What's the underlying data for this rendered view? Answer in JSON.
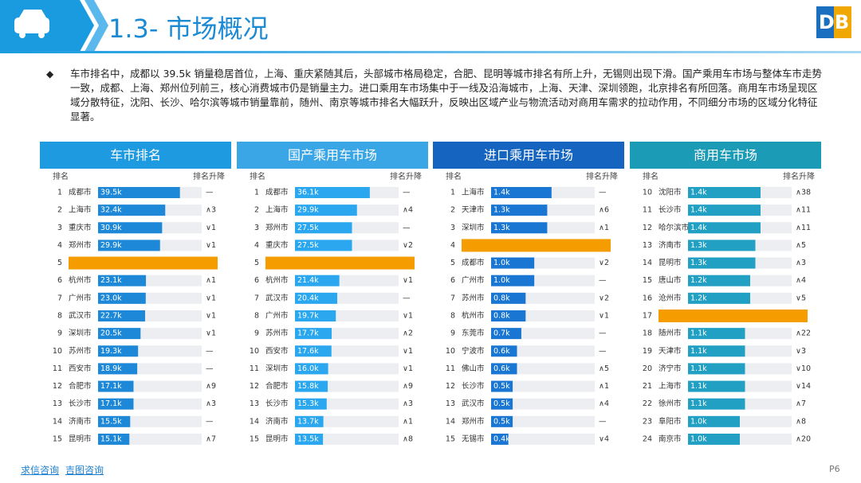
{
  "header": {
    "title": "1.3- 市场概况",
    "logo": "DB"
  },
  "summary": "车市排名中，成都以 39.5k 销量稳居首位，上海、重庆紧随其后，头部城市格局稳定，合肥、昆明等城市排名有所上升，无锡则出现下滑。国产乘用车市场与整体车市走势一致，成都、上海、郑州位列前三，核心消费城市仍是销量主力。进口乘用车市场集中于一线及沿海城市，上海、天津、深圳领跑，北京排名有所回落。商用车市场呈现区域分散特征，沈阳、长沙、哈尔滨等城市销量靠前，随州、南京等城市排名大幅跃升，反映出区域产业与物流活动对商用车需求的拉动作用，不同细分市场的区域分化特征显著。",
  "columns": [
    "排名",
    "排名升降"
  ],
  "panels": [
    {
      "title": "车市排名",
      "header_color": "#1e9be0",
      "bar_color": "#1e88d8",
      "xlim": [
        0,
        50
      ],
      "rows": [
        {
          "rank": 1,
          "city": "成都市",
          "value": 39.5,
          "value_label": "39.5k",
          "change": "—"
        },
        {
          "rank": 2,
          "city": "上海市",
          "value": 32.4,
          "value_label": "32.4k",
          "change": "∧3"
        },
        {
          "rank": 3,
          "city": "重庆市",
          "value": 30.9,
          "value_label": "30.9k",
          "change": "∨1"
        },
        {
          "rank": 4,
          "city": "郑州市",
          "value": 29.9,
          "value_label": "29.9k",
          "change": "∨1"
        },
        {
          "rank": 5,
          "color": "#f59c00"
        },
        {
          "rank": 6,
          "city": "杭州市",
          "value": 23.1,
          "value_label": "23.1k",
          "change": "∧1"
        },
        {
          "rank": 7,
          "city": "广州市",
          "value": 23.0,
          "value_label": "23.0k",
          "change": "∨1"
        },
        {
          "rank": 8,
          "city": "武汉市",
          "value": 22.7,
          "value_label": "22.7k",
          "change": "∨1"
        },
        {
          "rank": 9,
          "city": "深圳市",
          "value": 20.5,
          "value_label": "20.5k",
          "change": "∨1"
        },
        {
          "rank": 10,
          "city": "苏州市",
          "value": 19.3,
          "value_label": "19.3k",
          "change": "—"
        },
        {
          "rank": 11,
          "city": "西安市",
          "value": 18.9,
          "value_label": "18.9k",
          "change": "—"
        },
        {
          "rank": 12,
          "city": "合肥市",
          "value": 17.1,
          "value_label": "17.1k",
          "change": "∧9"
        },
        {
          "rank": 13,
          "city": "长沙市",
          "value": 17.1,
          "value_label": "17.1k",
          "change": "∧3"
        },
        {
          "rank": 14,
          "city": "济南市",
          "value": 15.5,
          "value_label": "15.5k",
          "change": "—"
        },
        {
          "rank": 15,
          "city": "昆明市",
          "value": 15.1,
          "value_label": "15.1k",
          "change": "∧7"
        }
      ]
    },
    {
      "title": "国产乘用车市场",
      "header_color": "#3aa6e6",
      "bar_color": "#2aa7ef",
      "xlim": [
        0,
        50
      ],
      "rows": [
        {
          "rank": 1,
          "city": "成都市",
          "value": 36.1,
          "value_label": "36.1k",
          "change": "—"
        },
        {
          "rank": 2,
          "city": "上海市",
          "value": 29.9,
          "value_label": "29.9k",
          "change": "∧4"
        },
        {
          "rank": 3,
          "city": "郑州市",
          "value": 27.5,
          "value_label": "27.5k",
          "change": "—"
        },
        {
          "rank": 4,
          "city": "重庆市",
          "value": 27.5,
          "value_label": "27.5k",
          "change": "∨2"
        },
        {
          "rank": 5,
          "color": "#f59c00"
        },
        {
          "rank": 6,
          "city": "杭州市",
          "value": 21.4,
          "value_label": "21.4k",
          "change": "∨1"
        },
        {
          "rank": 7,
          "city": "武汉市",
          "value": 20.4,
          "value_label": "20.4k",
          "change": "—"
        },
        {
          "rank": 8,
          "city": "广州市",
          "value": 19.7,
          "value_label": "19.7k",
          "change": "∨1"
        },
        {
          "rank": 9,
          "city": "苏州市",
          "value": 17.7,
          "value_label": "17.7k",
          "change": "∧2"
        },
        {
          "rank": 10,
          "city": "西安市",
          "value": 17.6,
          "value_label": "17.6k",
          "change": "∨1"
        },
        {
          "rank": 11,
          "city": "深圳市",
          "value": 16.0,
          "value_label": "16.0k",
          "change": "∨1"
        },
        {
          "rank": 12,
          "city": "合肥市",
          "value": 15.8,
          "value_label": "15.8k",
          "change": "∧9"
        },
        {
          "rank": 13,
          "city": "长沙市",
          "value": 15.3,
          "value_label": "15.3k",
          "change": "∧3"
        },
        {
          "rank": 14,
          "city": "济南市",
          "value": 13.7,
          "value_label": "13.7k",
          "change": "∧1"
        },
        {
          "rank": 15,
          "city": "昆明市",
          "value": 13.5,
          "value_label": "13.5k",
          "change": "∧8"
        }
      ]
    },
    {
      "title": "进口乘用车市场",
      "header_color": "#1565c0",
      "bar_color": "#1976d2",
      "xlim": [
        0,
        2.4
      ],
      "rows": [
        {
          "rank": 1,
          "city": "上海市",
          "value": 1.4,
          "value_label": "1.4k",
          "change": "—"
        },
        {
          "rank": 2,
          "city": "天津市",
          "value": 1.3,
          "value_label": "1.3k",
          "change": "∧6"
        },
        {
          "rank": 3,
          "city": "深圳市",
          "value": 1.3,
          "value_label": "1.3k",
          "change": "∧1"
        },
        {
          "rank": 4,
          "color": "#f59c00"
        },
        {
          "rank": 5,
          "city": "成都市",
          "value": 1.0,
          "value_label": "1.0k",
          "change": "∨2"
        },
        {
          "rank": 6,
          "city": "广州市",
          "value": 1.0,
          "value_label": "1.0k",
          "change": "—"
        },
        {
          "rank": 7,
          "city": "苏州市",
          "value": 0.8,
          "value_label": "0.8k",
          "change": "∨2"
        },
        {
          "rank": 8,
          "city": "杭州市",
          "value": 0.8,
          "value_label": "0.8k",
          "change": "∨1"
        },
        {
          "rank": 9,
          "city": "东莞市",
          "value": 0.7,
          "value_label": "0.7k",
          "change": "—"
        },
        {
          "rank": 10,
          "city": "宁波市",
          "value": 0.6,
          "value_label": "0.6k",
          "change": "—"
        },
        {
          "rank": 11,
          "city": "佛山市",
          "value": 0.6,
          "value_label": "0.6k",
          "change": "∧5"
        },
        {
          "rank": 12,
          "city": "长沙市",
          "value": 0.5,
          "value_label": "0.5k",
          "change": "∧1"
        },
        {
          "rank": 13,
          "city": "武汉市",
          "value": 0.5,
          "value_label": "0.5k",
          "change": "∧4"
        },
        {
          "rank": 14,
          "city": "郑州市",
          "value": 0.5,
          "value_label": "0.5k",
          "change": "—"
        },
        {
          "rank": 15,
          "city": "无锡市",
          "value": 0.4,
          "value_label": "0.4k",
          "change": "∨4"
        }
      ]
    },
    {
      "title": "商用车市场",
      "header_color": "#1b9bb5",
      "bar_color": "#21a0c4",
      "xlim": [
        0,
        2
      ],
      "rows": [
        {
          "rank": 10,
          "city": "沈阳市",
          "value": 1.4,
          "value_label": "1.4k",
          "change": "∧38"
        },
        {
          "rank": 11,
          "city": "长沙市",
          "value": 1.4,
          "value_label": "1.4k",
          "change": "∧11"
        },
        {
          "rank": 12,
          "city": "哈尔滨市",
          "value": 1.4,
          "value_label": "1.4k",
          "change": "∧11"
        },
        {
          "rank": 13,
          "city": "济南市",
          "value": 1.3,
          "value_label": "1.3k",
          "change": "∧5"
        },
        {
          "rank": 14,
          "city": "昆明市",
          "value": 1.3,
          "value_label": "1.3k",
          "change": "∧3"
        },
        {
          "rank": 15,
          "city": "唐山市",
          "value": 1.2,
          "value_label": "1.2k",
          "change": "∧4"
        },
        {
          "rank": 16,
          "city": "沧州市",
          "value": 1.2,
          "value_label": "1.2k",
          "change": "∨5"
        },
        {
          "rank": 17,
          "color": "#f59c00"
        },
        {
          "rank": 18,
          "city": "随州市",
          "value": 1.1,
          "value_label": "1.1k",
          "change": "∧22"
        },
        {
          "rank": 19,
          "city": "天津市",
          "value": 1.1,
          "value_label": "1.1k",
          "change": "∨3"
        },
        {
          "rank": 20,
          "city": "济宁市",
          "value": 1.1,
          "value_label": "1.1k",
          "change": "∨10"
        },
        {
          "rank": 21,
          "city": "上海市",
          "value": 1.1,
          "value_label": "1.1k",
          "change": "∨14"
        },
        {
          "rank": 22,
          "city": "徐州市",
          "value": 1.1,
          "value_label": "1.1k",
          "change": "∧7"
        },
        {
          "rank": 23,
          "city": "阜阳市",
          "value": 1.0,
          "value_label": "1.0k",
          "change": "∧8"
        },
        {
          "rank": 24,
          "city": "南京市",
          "value": 1.0,
          "value_label": "1.0k",
          "change": "∧20"
        }
      ]
    }
  ],
  "footer": {
    "links": [
      "求信咨询",
      "吉图咨询"
    ],
    "page": "P6"
  }
}
